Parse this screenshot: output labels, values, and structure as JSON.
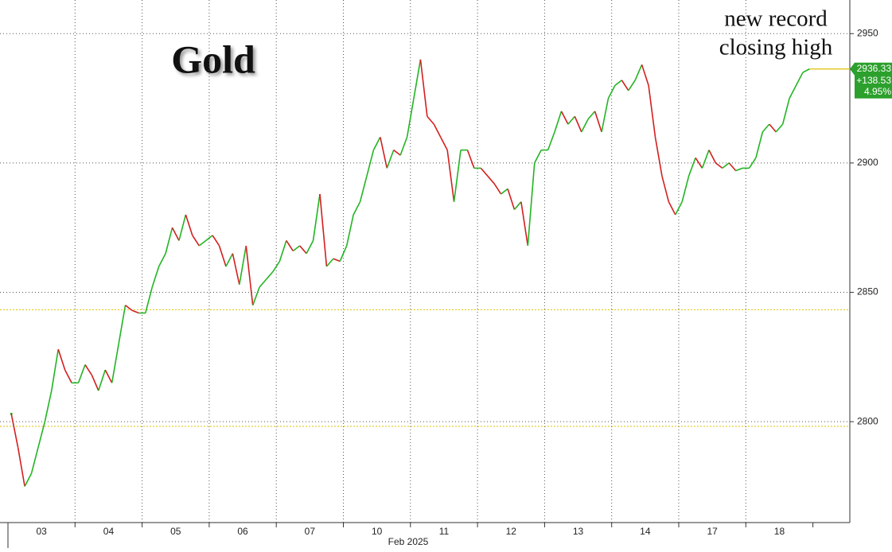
{
  "chart_data": {
    "type": "line",
    "title": "Gold",
    "annotation": [
      "new record",
      "closing high"
    ],
    "x_label": "Feb 2025",
    "days": [
      {
        "label": "03",
        "values": [
          2803,
          2790,
          2775,
          2780,
          2790,
          2800,
          2812,
          2828,
          2820,
          2815
        ]
      },
      {
        "label": "04",
        "values": [
          2815,
          2822,
          2818,
          2812,
          2820,
          2815,
          2830,
          2845,
          2843,
          2842
        ]
      },
      {
        "label": "05",
        "values": [
          2842,
          2852,
          2860,
          2865,
          2875,
          2870,
          2880,
          2872,
          2868,
          2870
        ]
      },
      {
        "label": "06",
        "values": [
          2872,
          2868,
          2860,
          2865,
          2853,
          2868,
          2845,
          2852,
          2855,
          2858
        ]
      },
      {
        "label": "07",
        "values": [
          2862,
          2870,
          2866,
          2868,
          2865,
          2870,
          2888,
          2860,
          2863,
          2862
        ]
      },
      {
        "label": "10",
        "values": [
          2868,
          2880,
          2885,
          2895,
          2905,
          2910,
          2898,
          2905,
          2903,
          2910
        ]
      },
      {
        "label": "11",
        "values": [
          2925,
          2940,
          2918,
          2915,
          2910,
          2905,
          2885,
          2905,
          2905,
          2898
        ]
      },
      {
        "label": "12",
        "values": [
          2898,
          2895,
          2892,
          2888,
          2890,
          2882,
          2885,
          2868,
          2900,
          2905
        ]
      },
      {
        "label": "13",
        "values": [
          2905,
          2912,
          2920,
          2915,
          2918,
          2912,
          2917,
          2920,
          2912,
          2925
        ]
      },
      {
        "label": "14",
        "values": [
          2930,
          2932,
          2928,
          2932,
          2938,
          2930,
          2910,
          2895,
          2885,
          2880
        ]
      },
      {
        "label": "17",
        "values": [
          2885,
          2895,
          2902,
          2898,
          2905,
          2900,
          2898,
          2900,
          2897,
          2898
        ]
      },
      {
        "label": "18",
        "values": [
          2898,
          2902,
          2912,
          2915,
          2912,
          2915,
          2925,
          2930,
          2935,
          2936.33
        ]
      }
    ],
    "up_color": "#22b522",
    "down_color": "#d41f1f",
    "ylim": [
      2761,
      2963
    ],
    "yticks": [
      2800,
      2850,
      2900,
      2950
    ],
    "grid": true,
    "reference_lines": [
      2843.3,
      2798.2
    ],
    "reference_color": "#e0c000",
    "last": {
      "price": 2936.33,
      "change": {
        "value": 138.53,
        "label": "+138.53"
      },
      "percent": {
        "value": 4.95,
        "label": "4.95%"
      }
    },
    "last_color": "#2ca02c"
  }
}
